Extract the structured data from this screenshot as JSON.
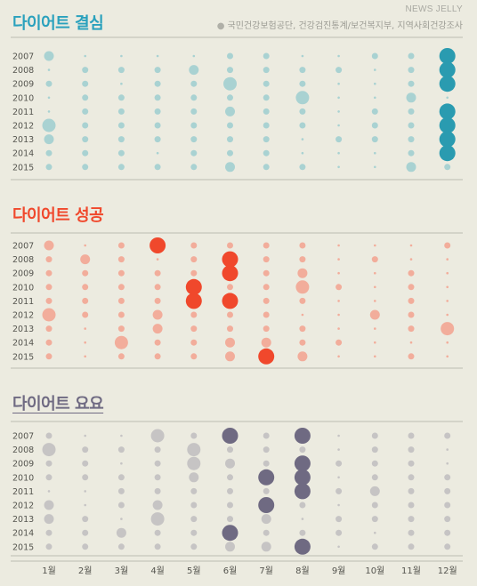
{
  "header": {
    "brand": "NEWS JELLY",
    "source": "국민건강보험공단, 건강검진통계/보건복지부, 지역사회건강조사"
  },
  "colors": {
    "background": "#ecebe0",
    "panel1_light": "#a9d2d2",
    "panel1_strong": "#2a9bb0",
    "panel1_title": "#2aa1bd",
    "panel2_light": "#f2ad9b",
    "panel2_strong": "#f0482c",
    "panel2_title": "#f0482c",
    "panel3_light": "#c6c4c4",
    "panel3_strong": "#6f6a82",
    "panel3_title": "#6f6a82",
    "axis": "#bdbcb2"
  },
  "chart_data": {
    "type": "bubble-matrix",
    "x_categories": [
      "1월",
      "2월",
      "3월",
      "4월",
      "5월",
      "6월",
      "7월",
      "8월",
      "9월",
      "10월",
      "11월",
      "12월"
    ],
    "y_categories": [
      "2007",
      "2008",
      "2009",
      "2010",
      "2011",
      "2012",
      "2013",
      "2014",
      "2015"
    ],
    "value_scale": "relative bubble size 0–4; level 4 drawn in strong color",
    "panels": [
      {
        "title": "다이어트 결심",
        "values": [
          [
            2,
            0,
            0,
            0,
            0,
            1,
            1,
            0,
            0,
            1,
            1,
            4
          ],
          [
            0,
            1,
            1,
            1,
            2,
            1,
            1,
            1,
            1,
            0,
            1,
            4
          ],
          [
            1,
            1,
            0,
            1,
            1,
            3,
            1,
            1,
            0,
            0,
            1,
            4
          ],
          [
            0,
            1,
            1,
            1,
            1,
            1,
            1,
            3,
            0,
            0,
            2,
            0
          ],
          [
            0,
            1,
            1,
            1,
            1,
            2,
            1,
            1,
            0,
            1,
            1,
            4
          ],
          [
            3,
            1,
            1,
            1,
            1,
            1,
            1,
            1,
            0,
            1,
            1,
            4
          ],
          [
            2,
            1,
            1,
            1,
            1,
            1,
            1,
            0,
            1,
            1,
            1,
            4
          ],
          [
            1,
            1,
            1,
            0,
            1,
            1,
            1,
            0,
            0,
            0,
            1,
            4
          ],
          [
            1,
            1,
            1,
            1,
            1,
            2,
            1,
            1,
            0,
            0,
            2,
            1
          ]
        ]
      },
      {
        "title": "다이어트 성공",
        "values": [
          [
            2,
            0,
            1,
            4,
            1,
            1,
            1,
            1,
            0,
            0,
            0,
            1
          ],
          [
            1,
            2,
            1,
            0,
            1,
            4,
            1,
            1,
            0,
            1,
            0,
            0
          ],
          [
            1,
            1,
            1,
            1,
            1,
            4,
            1,
            2,
            0,
            0,
            1,
            0
          ],
          [
            1,
            1,
            1,
            1,
            4,
            1,
            1,
            3,
            1,
            0,
            1,
            0
          ],
          [
            1,
            1,
            1,
            1,
            4,
            4,
            1,
            1,
            0,
            0,
            1,
            0
          ],
          [
            3,
            1,
            1,
            2,
            1,
            1,
            1,
            0,
            0,
            2,
            1,
            0
          ],
          [
            1,
            0,
            1,
            2,
            1,
            1,
            1,
            1,
            0,
            0,
            1,
            3
          ],
          [
            1,
            0,
            3,
            1,
            1,
            2,
            2,
            1,
            1,
            0,
            0,
            0
          ],
          [
            1,
            0,
            1,
            1,
            1,
            2,
            4,
            2,
            0,
            0,
            1,
            0
          ]
        ]
      },
      {
        "title": "다이어트 요요",
        "values": [
          [
            1,
            0,
            0,
            3,
            1,
            4,
            1,
            4,
            0,
            1,
            1,
            1
          ],
          [
            3,
            1,
            1,
            1,
            3,
            1,
            1,
            1,
            0,
            1,
            1,
            0
          ],
          [
            1,
            1,
            0,
            1,
            3,
            2,
            1,
            4,
            1,
            1,
            1,
            0
          ],
          [
            1,
            1,
            1,
            1,
            2,
            1,
            4,
            4,
            0,
            1,
            1,
            1
          ],
          [
            0,
            0,
            1,
            1,
            1,
            1,
            1,
            4,
            1,
            2,
            1,
            1
          ],
          [
            2,
            0,
            1,
            2,
            1,
            1,
            4,
            1,
            0,
            1,
            1,
            1
          ],
          [
            2,
            1,
            0,
            3,
            1,
            1,
            2,
            0,
            1,
            1,
            1,
            1
          ],
          [
            1,
            1,
            2,
            1,
            1,
            4,
            1,
            1,
            1,
            0,
            1,
            1
          ],
          [
            1,
            1,
            1,
            1,
            1,
            2,
            2,
            4,
            0,
            1,
            1,
            1
          ]
        ]
      }
    ]
  }
}
